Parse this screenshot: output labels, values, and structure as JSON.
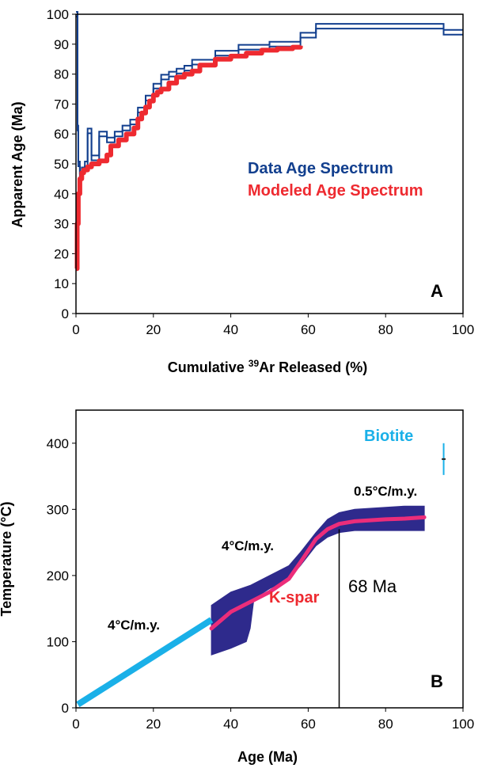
{
  "chart_data": [
    {
      "panel": "A",
      "type": "line",
      "xlabel_prefix": "Cumulative ",
      "xlabel_sup": "39",
      "xlabel_suffix": "Ar Released (%)",
      "ylabel": "Apparent Age (Ma)",
      "xlim": [
        0,
        100
      ],
      "ylim": [
        0,
        100
      ],
      "xticks": [
        "0",
        "20",
        "40",
        "60",
        "80",
        "100"
      ],
      "yticks": [
        "0",
        "10",
        "20",
        "30",
        "40",
        "50",
        "60",
        "70",
        "80",
        "90",
        "100"
      ],
      "legend_placement": "center-right",
      "series": [
        {
          "name": "Data Age Spectrum",
          "color": "#123f8e",
          "x": [
            0,
            0.4,
            0.4,
            0.6,
            0.6,
            1.0,
            1.0,
            1.5,
            1.5,
            2.3,
            2.3,
            3.0,
            3.0,
            4.0,
            4.0,
            6.0,
            6.0,
            8.0,
            8.0,
            10.0,
            10.0,
            12.0,
            12.0,
            14.0,
            14.0,
            16.0,
            16.0,
            18.0,
            18.0,
            20.0,
            20.0,
            22.0,
            22.0,
            24.0,
            24.0,
            26.0,
            26.0,
            28.0,
            28.0,
            30.0,
            30.0,
            36.0,
            36.0,
            42.0,
            42.0,
            50.0,
            50.0,
            58.0,
            58.0,
            62.0,
            62.0,
            95.0,
            95.0,
            100.0
          ],
          "y": [
            100,
            100,
            62,
            62,
            50,
            50,
            46,
            46,
            48,
            48,
            50,
            50,
            61,
            61,
            52,
            52,
            60,
            60,
            58,
            58,
            60,
            60,
            62,
            62,
            64,
            64,
            68,
            68,
            72,
            72,
            76,
            76,
            79,
            79,
            80,
            80,
            81,
            81,
            82,
            82,
            84,
            84,
            87,
            87,
            89,
            89,
            90,
            90,
            93,
            93,
            96,
            96,
            94,
            94
          ]
        },
        {
          "name": "Modeled Age Spectrum",
          "color": "#ee2a30",
          "x": [
            0,
            0.3,
            0.6,
            1.0,
            1.5,
            2.0,
            3.0,
            4.0,
            6.0,
            8.0,
            9.0,
            11.0,
            13.0,
            15.0,
            16.0,
            17.0,
            18.0,
            19.0,
            20.0,
            21.0,
            22.0,
            24.0,
            26.0,
            28.0,
            30.0,
            32.0,
            36.0,
            40.0,
            44.0,
            48.0,
            52.0,
            56.0,
            58.0
          ],
          "y": [
            15,
            30,
            40,
            45,
            47,
            48,
            49,
            50,
            51,
            53,
            56,
            58,
            60,
            62,
            65,
            67,
            69,
            71,
            73,
            74,
            75,
            77,
            79,
            80,
            81,
            83,
            85,
            86,
            87,
            88,
            88.5,
            89,
            89.5
          ]
        }
      ],
      "panel_letter": "A"
    },
    {
      "panel": "B",
      "type": "line",
      "xlabel": "Age (Ma)",
      "ylabel": "Temperature (°C)",
      "xlim": [
        0,
        100
      ],
      "ylim": [
        0,
        450
      ],
      "xticks": [
        "0",
        "20",
        "40",
        "60",
        "80",
        "100"
      ],
      "yticks": [
        "0",
        "100",
        "200",
        "300",
        "400"
      ],
      "kspar_envelope": {
        "color": "#2e2a8c",
        "upper": {
          "x": [
            35,
            40,
            45,
            50,
            55,
            58,
            62,
            65,
            68,
            72,
            80,
            85,
            90
          ],
          "y": [
            155,
            175,
            185,
            200,
            215,
            235,
            265,
            285,
            295,
            300,
            303,
            305,
            305
          ]
        },
        "lower": {
          "x": [
            35,
            40,
            44,
            45,
            46,
            50,
            55,
            58,
            62,
            65,
            68,
            72,
            80,
            85,
            90
          ],
          "y": [
            80,
            90,
            100,
            120,
            165,
            180,
            195,
            215,
            245,
            258,
            265,
            268,
            268,
            268,
            268
          ]
        }
      },
      "kspar_path": {
        "name": "K-spar",
        "color": "#ec2d7a",
        "x": [
          35,
          40,
          45,
          50,
          55,
          58,
          62,
          65,
          68,
          72,
          80,
          85,
          90
        ],
        "y": [
          120,
          145,
          160,
          175,
          195,
          220,
          255,
          270,
          278,
          282,
          285,
          286,
          288
        ]
      },
      "cooling_line": {
        "color": "#1ab0e8",
        "x": [
          0.5,
          35
        ],
        "y": [
          5,
          133
        ]
      },
      "biotite": {
        "name": "Biotite",
        "color": "#1ab0e8",
        "x": 95,
        "y": 376,
        "y_err": [
          352,
          400
        ],
        "x_err": [
          94.5,
          95.5
        ]
      },
      "marker_line": {
        "x": 68,
        "y_top": 270,
        "label": "68 Ma"
      },
      "rate_labels": [
        "4°C/m.y.",
        "4°C/m.y.",
        "0.5°C/m.y."
      ],
      "panel_letter": "B"
    }
  ]
}
